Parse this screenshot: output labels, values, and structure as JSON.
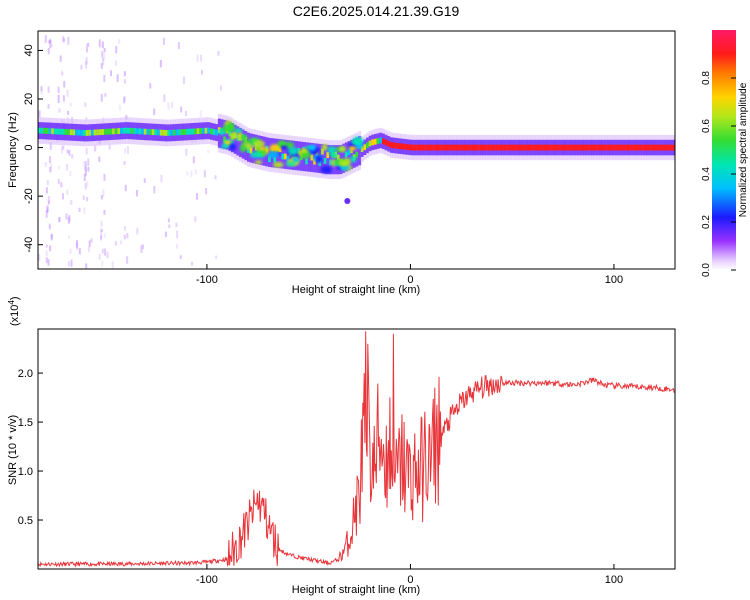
{
  "title": "C2E6.2025.014.21.39.G19",
  "chart_data": [
    {
      "type": "heatmap",
      "xlabel": "Height of straight line (km)",
      "ylabel": "Frequency (Hz)",
      "xlim": [
        -183,
        130
      ],
      "ylim": [
        -50,
        48
      ],
      "xticks": [
        -100,
        0,
        100
      ],
      "yticks": [
        -40,
        -20,
        0,
        20,
        40
      ],
      "colorbar": {
        "label": "Normalized spectral amplitude",
        "range": [
          0,
          1
        ],
        "ticks": [
          "0.0",
          "0.2",
          "0.4",
          "0.6",
          "0.8"
        ]
      },
      "ridge": {
        "x": [
          -183,
          -160,
          -140,
          -120,
          -100,
          -90,
          -80,
          -70,
          -60,
          -50,
          -40,
          -35,
          -30,
          -25,
          -20,
          -15,
          -10,
          0,
          10,
          20,
          40,
          60,
          80,
          100,
          120,
          130
        ],
        "y": [
          7,
          6,
          7,
          6,
          7,
          5,
          0,
          -2,
          -3,
          -4,
          -5,
          -5,
          -3,
          -1,
          2,
          3,
          1,
          0,
          0,
          0,
          0,
          0,
          0,
          0,
          0,
          0
        ]
      }
    },
    {
      "type": "line",
      "xlabel": "Height of straight line (km)",
      "ylabel": "SNR (10 * v/v)",
      "y_scale_label": "(x10",
      "y_scale_exp": "4",
      "y_scale_close": ")",
      "xlim": [
        -183,
        130
      ],
      "ylim": [
        0,
        2.45
      ],
      "xticks": [
        -100,
        0,
        100
      ],
      "yticks": [
        "0.5",
        "1.0",
        "1.5",
        "2.0"
      ],
      "series": [
        {
          "color": "#e8353a",
          "x": [
            -183,
            -150,
            -110,
            -100,
            -90,
            -85,
            -80,
            -75,
            -72,
            -70,
            -65,
            -60,
            -55,
            -50,
            -45,
            -40,
            -35,
            -30,
            -28,
            -25,
            -22,
            -20,
            -18,
            -15,
            -12,
            -10,
            -8,
            -6,
            -4,
            -2,
            0,
            2,
            5,
            8,
            10,
            12,
            15,
            20,
            25,
            30,
            35,
            40,
            45,
            50,
            60,
            70,
            80,
            85,
            90,
            95,
            100,
            110,
            120,
            130
          ],
          "y": [
            0.05,
            0.05,
            0.06,
            0.07,
            0.1,
            0.25,
            0.45,
            0.7,
            0.6,
            0.45,
            0.2,
            0.15,
            0.12,
            0.1,
            0.08,
            0.06,
            0.1,
            0.3,
            0.5,
            0.8,
            1.6,
            1.2,
            1.0,
            1.4,
            1.1,
            1.3,
            0.9,
            1.0,
            1.1,
            1.0,
            0.95,
            1.0,
            1.0,
            1.15,
            1.05,
            1.3,
            1.35,
            1.55,
            1.7,
            1.8,
            1.85,
            1.88,
            1.9,
            1.9,
            1.9,
            1.9,
            1.88,
            1.9,
            1.93,
            1.88,
            1.87,
            1.86,
            1.85,
            1.83
          ]
        }
      ]
    }
  ]
}
